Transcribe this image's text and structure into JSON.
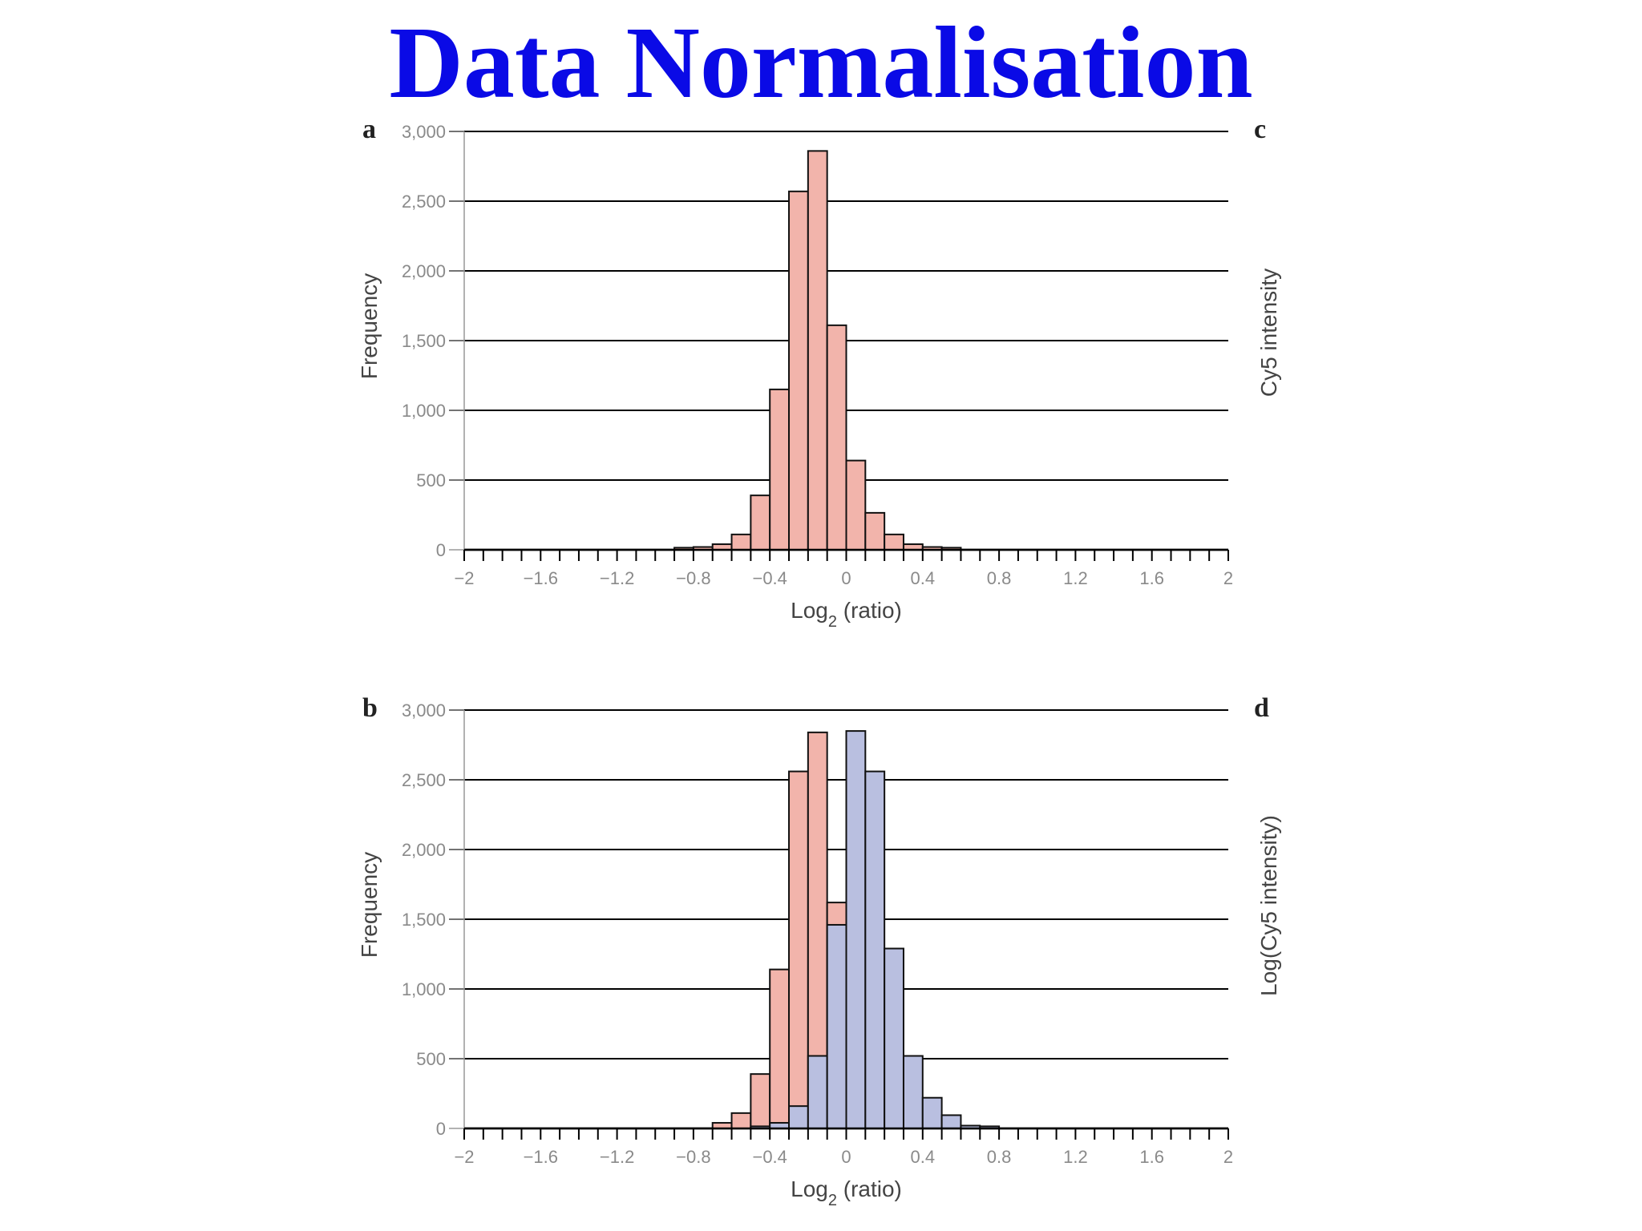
{
  "slide": {
    "title": "Data Normalisation",
    "title_color": "#0a0ae6"
  },
  "panels": {
    "a": {
      "letter": "a",
      "side_letter": "c",
      "side_label": "Cy5 intensity"
    },
    "b": {
      "letter": "b",
      "side_letter": "d",
      "side_label": "Log(Cy5 intensity)"
    }
  },
  "colors": {
    "before": "#f2b4ab",
    "after": "#b9bfe0",
    "bar_outline": "#111111",
    "gridline": "#000000"
  },
  "chart_data": [
    {
      "type": "bar",
      "panel": "a",
      "xlabel": "Log",
      "xlabel_sub": "2",
      "xlabel_suffix": " (ratio)",
      "ylabel": "Frequency",
      "xlim": [
        -2,
        2
      ],
      "ylim": [
        0,
        3000
      ],
      "bin_width": 0.1,
      "x_ticks": [
        -2,
        -1.6,
        -1.2,
        -0.8,
        -0.4,
        0,
        0.4,
        0.8,
        1.2,
        1.6,
        2
      ],
      "x_tick_labels": [
        "−2",
        "−1.6",
        "−1.2",
        "−0.8",
        "−0.4",
        "0",
        "0.4",
        "0.8",
        "1.2",
        "1.6",
        "2"
      ],
      "y_ticks": [
        0,
        500,
        1000,
        1500,
        2000,
        2500,
        3000
      ],
      "y_tick_labels": [
        "0",
        "500",
        "1,000",
        "1,500",
        "2,000",
        "2,500",
        "3,000"
      ],
      "grid": true,
      "series": [
        {
          "color_key": "before",
          "bins": [
            {
              "x0": -0.9,
              "value": 15
            },
            {
              "x0": -0.8,
              "value": 20
            },
            {
              "x0": -0.7,
              "value": 40
            },
            {
              "x0": -0.6,
              "value": 110
            },
            {
              "x0": -0.5,
              "value": 390
            },
            {
              "x0": -0.4,
              "value": 1150
            },
            {
              "x0": -0.3,
              "value": 2570
            },
            {
              "x0": -0.2,
              "value": 2860
            },
            {
              "x0": -0.1,
              "value": 1610
            },
            {
              "x0": 0.0,
              "value": 640
            },
            {
              "x0": 0.1,
              "value": 265
            },
            {
              "x0": 0.2,
              "value": 110
            },
            {
              "x0": 0.3,
              "value": 40
            },
            {
              "x0": 0.4,
              "value": 20
            },
            {
              "x0": 0.5,
              "value": 15
            }
          ]
        }
      ]
    },
    {
      "type": "bar",
      "panel": "b",
      "xlabel": "Log",
      "xlabel_sub": "2",
      "xlabel_suffix": " (ratio)",
      "ylabel": "Frequency",
      "xlim": [
        -2,
        2
      ],
      "ylim": [
        0,
        3000
      ],
      "bin_width": 0.1,
      "x_ticks": [
        -2,
        -1.6,
        -1.2,
        -0.8,
        -0.4,
        0,
        0.4,
        0.8,
        1.2,
        1.6,
        2
      ],
      "x_tick_labels": [
        "−2",
        "−1.6",
        "−1.2",
        "−0.8",
        "−0.4",
        "0",
        "0.4",
        "0.8",
        "1.2",
        "1.6",
        "2"
      ],
      "y_ticks": [
        0,
        500,
        1000,
        1500,
        2000,
        2500,
        3000
      ],
      "y_tick_labels": [
        "0",
        "500",
        "1,000",
        "1,500",
        "2,000",
        "2,500",
        "3,000"
      ],
      "grid": true,
      "series": [
        {
          "color_key": "before",
          "bins": [
            {
              "x0": -0.7,
              "value": 40
            },
            {
              "x0": -0.6,
              "value": 110
            },
            {
              "x0": -0.5,
              "value": 390
            },
            {
              "x0": -0.4,
              "value": 1140
            },
            {
              "x0": -0.3,
              "value": 2560
            },
            {
              "x0": -0.2,
              "value": 2840
            },
            {
              "x0": -0.1,
              "value": 1620
            }
          ]
        },
        {
          "color_key": "after",
          "bins": [
            {
              "x0": -0.5,
              "value": 15
            },
            {
              "x0": -0.4,
              "value": 40
            },
            {
              "x0": -0.3,
              "value": 160
            },
            {
              "x0": -0.2,
              "value": 520
            },
            {
              "x0": -0.1,
              "value": 1460
            },
            {
              "x0": 0.0,
              "value": 2850
            },
            {
              "x0": 0.1,
              "value": 2560
            },
            {
              "x0": 0.2,
              "value": 1290
            },
            {
              "x0": 0.3,
              "value": 520
            },
            {
              "x0": 0.4,
              "value": 220
            },
            {
              "x0": 0.5,
              "value": 95
            },
            {
              "x0": 0.6,
              "value": 20
            },
            {
              "x0": 0.7,
              "value": 15
            }
          ]
        }
      ]
    }
  ]
}
